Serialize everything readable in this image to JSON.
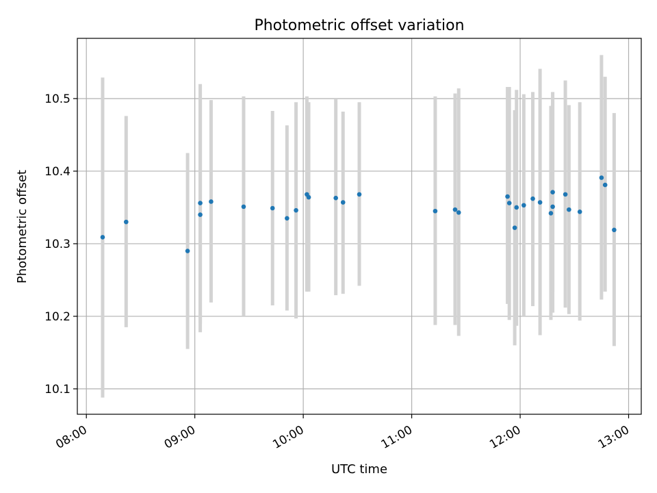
{
  "chart_data": {
    "type": "scatter",
    "title": "Photometric offset variation",
    "xlabel": "UTC time",
    "ylabel": "Photometric offset",
    "x_is_time": true,
    "xlim": [
      "07:55",
      "13:07"
    ],
    "ylim": [
      10.065,
      10.583
    ],
    "grid": true,
    "x_ticks": [
      "08:00",
      "09:00",
      "10:00",
      "11:00",
      "12:00",
      "13:00"
    ],
    "y_ticks": [
      "10.1",
      "10.2",
      "10.3",
      "10.4",
      "10.5"
    ],
    "marker_color": "#1f77b4",
    "errorbar_color": "#d3d3d3",
    "points": [
      {
        "t": "08:09",
        "y": 10.309,
        "lo": 10.088,
        "hi": 10.529
      },
      {
        "t": "08:22",
        "y": 10.33,
        "lo": 10.185,
        "hi": 10.476
      },
      {
        "t": "08:56",
        "y": 10.29,
        "lo": 10.155,
        "hi": 10.425
      },
      {
        "t": "09:03",
        "y": 10.34,
        "lo": 10.178,
        "hi": 10.5
      },
      {
        "t": "09:03",
        "y": 10.356,
        "lo": 10.19,
        "hi": 10.52
      },
      {
        "t": "09:09",
        "y": 10.358,
        "lo": 10.219,
        "hi": 10.498
      },
      {
        "t": "09:27",
        "y": 10.351,
        "lo": 10.2,
        "hi": 10.503
      },
      {
        "t": "09:43",
        "y": 10.349,
        "lo": 10.215,
        "hi": 10.483
      },
      {
        "t": "09:51",
        "y": 10.335,
        "lo": 10.208,
        "hi": 10.463
      },
      {
        "t": "09:56",
        "y": 10.346,
        "lo": 10.197,
        "hi": 10.495
      },
      {
        "t": "10:02",
        "y": 10.368,
        "lo": 10.234,
        "hi": 10.503
      },
      {
        "t": "10:03",
        "y": 10.364,
        "lo": 10.234,
        "hi": 10.495
      },
      {
        "t": "10:18",
        "y": 10.363,
        "lo": 10.229,
        "hi": 10.499
      },
      {
        "t": "10:22",
        "y": 10.357,
        "lo": 10.231,
        "hi": 10.482
      },
      {
        "t": "10:31",
        "y": 10.368,
        "lo": 10.242,
        "hi": 10.495
      },
      {
        "t": "11:13",
        "y": 10.345,
        "lo": 10.188,
        "hi": 10.503
      },
      {
        "t": "11:24",
        "y": 10.347,
        "lo": 10.188,
        "hi": 10.507
      },
      {
        "t": "11:26",
        "y": 10.343,
        "lo": 10.173,
        "hi": 10.514
      },
      {
        "t": "11:53",
        "y": 10.365,
        "lo": 10.217,
        "hi": 10.516
      },
      {
        "t": "11:54",
        "y": 10.356,
        "lo": 10.195,
        "hi": 10.516
      },
      {
        "t": "11:57",
        "y": 10.322,
        "lo": 10.16,
        "hi": 10.484
      },
      {
        "t": "11:58",
        "y": 10.35,
        "lo": 10.187,
        "hi": 10.512
      },
      {
        "t": "12:02",
        "y": 10.353,
        "lo": 10.2,
        "hi": 10.506
      },
      {
        "t": "12:07",
        "y": 10.362,
        "lo": 10.214,
        "hi": 10.509
      },
      {
        "t": "12:11",
        "y": 10.357,
        "lo": 10.174,
        "hi": 10.541
      },
      {
        "t": "12:17",
        "y": 10.342,
        "lo": 10.195,
        "hi": 10.49
      },
      {
        "t": "12:18",
        "y": 10.351,
        "lo": 10.205,
        "hi": 10.497
      },
      {
        "t": "12:18",
        "y": 10.371,
        "lo": 10.234,
        "hi": 10.509
      },
      {
        "t": "12:25",
        "y": 10.368,
        "lo": 10.212,
        "hi": 10.525
      },
      {
        "t": "12:27",
        "y": 10.347,
        "lo": 10.203,
        "hi": 10.491
      },
      {
        "t": "12:33",
        "y": 10.344,
        "lo": 10.194,
        "hi": 10.495
      },
      {
        "t": "12:45",
        "y": 10.391,
        "lo": 10.223,
        "hi": 10.56
      },
      {
        "t": "12:47",
        "y": 10.381,
        "lo": 10.234,
        "hi": 10.53
      },
      {
        "t": "12:52",
        "y": 10.319,
        "lo": 10.159,
        "hi": 10.48
      }
    ]
  }
}
